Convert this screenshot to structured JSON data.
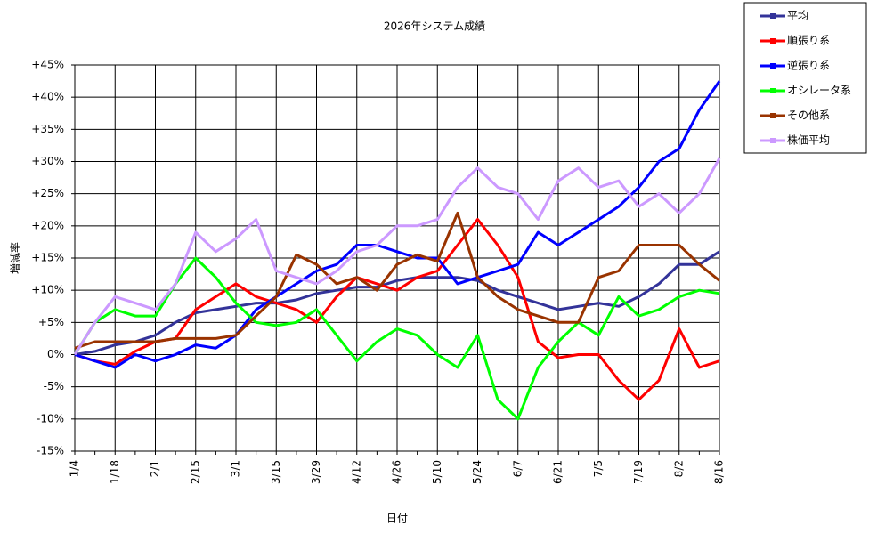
{
  "chart_data": {
    "type": "line",
    "title": "2026年システム成績",
    "x_label": "日付",
    "y_label": "増減率",
    "categories": [
      "1/4",
      null,
      "1/18",
      null,
      "2/1",
      null,
      "2/15",
      null,
      "3/1",
      null,
      "3/15",
      null,
      "3/29",
      null,
      "4/12",
      null,
      "4/26",
      null,
      "5/10",
      null,
      "5/24",
      null,
      "6/7",
      null,
      "6/21",
      null,
      "7/5",
      null,
      "7/19",
      null,
      "8/2",
      null,
      "8/16"
    ],
    "ylim": [
      -15,
      45
    ],
    "yticks": [
      {
        "value": -15,
        "label": "-15%"
      },
      {
        "value": -10,
        "label": "-10%"
      },
      {
        "value": -5,
        "label": "-5%"
      },
      {
        "value": 0,
        "label": "0%"
      },
      {
        "value": 5,
        "label": "+5%"
      },
      {
        "value": 10,
        "label": "+10%"
      },
      {
        "value": 15,
        "label": "+15%"
      },
      {
        "value": 20,
        "label": "+20%"
      },
      {
        "value": 25,
        "label": "+25%"
      },
      {
        "value": 30,
        "label": "+30%"
      },
      {
        "value": 35,
        "label": "+35%"
      },
      {
        "value": 40,
        "label": "+40%"
      },
      {
        "value": 45,
        "label": "+45%"
      }
    ],
    "grid": true,
    "legend": "right",
    "series": [
      {
        "name": "平均",
        "color": "#333399",
        "values": [
          0,
          0.5,
          1.5,
          2,
          3,
          5,
          6.5,
          7,
          7.5,
          8,
          8,
          8.5,
          9.5,
          10,
          10.5,
          10.5,
          11.5,
          12,
          12,
          12,
          11.5,
          10,
          9,
          8,
          7,
          7.5,
          8,
          7.5,
          9,
          11,
          14,
          14,
          16
        ]
      },
      {
        "name": "順張り系",
        "color": "#ff0000",
        "values": [
          0,
          -1,
          -1.5,
          0.5,
          2,
          2.5,
          7,
          9,
          11,
          9,
          8,
          7,
          5,
          9,
          12,
          11,
          10,
          12,
          13,
          17,
          21,
          17,
          12,
          2,
          -0.5,
          0,
          0,
          -4,
          -7,
          -4,
          4,
          -2,
          -1
        ]
      },
      {
        "name": "逆張り系",
        "color": "#0000ff",
        "values": [
          0,
          -1,
          -2,
          0,
          -1,
          0,
          1.5,
          1,
          3,
          7,
          9,
          11,
          13,
          14,
          17,
          17,
          16,
          15,
          15,
          11,
          12,
          13,
          14,
          19,
          17,
          19,
          21,
          23,
          26,
          30,
          32,
          38,
          42.5
        ]
      },
      {
        "name": "オシレータ系",
        "color": "#00ff00",
        "values": [
          0,
          5,
          7,
          6,
          6,
          11,
          15,
          12,
          8,
          5,
          4.5,
          5,
          7,
          3,
          -1,
          2,
          4,
          3,
          0,
          -2,
          3,
          -7,
          -10,
          -2,
          2,
          5,
          3,
          9,
          6,
          7,
          9,
          10,
          9.5
        ]
      },
      {
        "name": "その他系",
        "color": "#993300",
        "values": [
          1,
          2,
          2,
          2,
          2,
          2.5,
          2.5,
          2.5,
          3,
          6,
          9,
          15.5,
          14,
          11,
          12,
          10,
          14,
          15.5,
          14.5,
          22,
          12,
          9,
          7,
          6,
          5,
          5,
          12,
          13,
          17,
          17,
          17,
          14,
          11.5
        ]
      },
      {
        "name": "株価平均",
        "color": "#cc99ff",
        "values": [
          0,
          5,
          9,
          8,
          7,
          11,
          19,
          16,
          18,
          21,
          13,
          12,
          11,
          13,
          16,
          17,
          20,
          20,
          21,
          26,
          29,
          26,
          25,
          21,
          27,
          29,
          26,
          27,
          23,
          25,
          22,
          25,
          30.5
        ]
      }
    ]
  }
}
